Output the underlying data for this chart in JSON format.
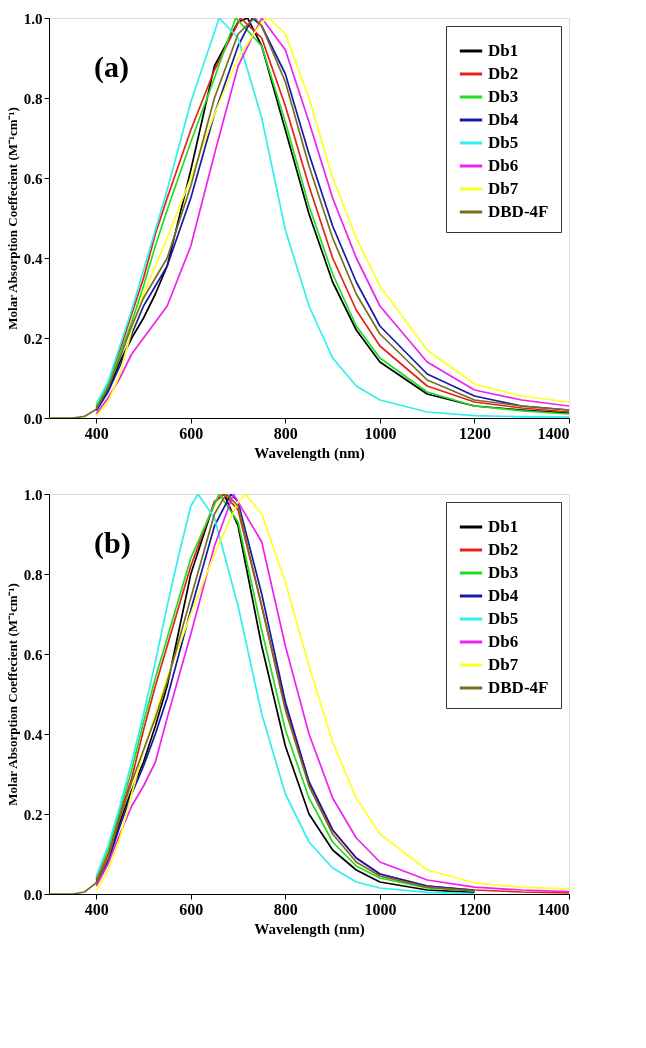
{
  "chart_data": [
    {
      "type": "line",
      "xlabel": "Wavelength (nm)",
      "ylabel": "Molar Absorption Coeffecient (M⁻¹cm⁻¹)",
      "annotations": [
        "(a)"
      ],
      "xlim": [
        300,
        1400
      ],
      "xticks": [
        400,
        600,
        800,
        1000,
        1200,
        1400
      ],
      "ylim": [
        0,
        1.0
      ],
      "yticks": [
        {
          "value": 0,
          "label": "0.0"
        },
        {
          "value": 0.2,
          "label": "0.2"
        },
        {
          "value": 0.4,
          "label": "0.4"
        },
        {
          "value": 0.6,
          "label": "0.6"
        },
        {
          "value": 0.8,
          "label": "0.8"
        },
        {
          "value": 1.0,
          "label": "1.0"
        }
      ],
      "grid": false,
      "legend": "top right",
      "marker": "none",
      "line_style": "solid",
      "series": [
        {
          "name": "Db1",
          "color": "#000000",
          "x": [
            400,
            425,
            450,
            475,
            500,
            525,
            550,
            600,
            650,
            700,
            720,
            750,
            800,
            850,
            900,
            950,
            1000,
            1100,
            1200,
            1300,
            1400
          ],
          "values": [
            0.02,
            0.07,
            0.14,
            0.2,
            0.25,
            0.31,
            0.38,
            0.62,
            0.88,
            0.99,
            1.0,
            0.93,
            0.72,
            0.51,
            0.34,
            0.22,
            0.14,
            0.06,
            0.03,
            0.02,
            0.012
          ]
        },
        {
          "name": "Db2",
          "color": "#e8201c",
          "x": [
            400,
            425,
            450,
            475,
            500,
            525,
            550,
            600,
            650,
            705,
            750,
            800,
            850,
            900,
            950,
            1000,
            1100,
            1200,
            1300,
            1400
          ],
          "values": [
            0.025,
            0.085,
            0.17,
            0.26,
            0.35,
            0.46,
            0.55,
            0.72,
            0.87,
            1.0,
            0.95,
            0.78,
            0.58,
            0.4,
            0.27,
            0.18,
            0.08,
            0.04,
            0.025,
            0.015
          ]
        },
        {
          "name": "Db3",
          "color": "#22dd22",
          "x": [
            400,
            425,
            450,
            475,
            500,
            525,
            550,
            600,
            650,
            695,
            750,
            800,
            850,
            900,
            950,
            1000,
            1100,
            1200,
            1300,
            1400
          ],
          "values": [
            0.03,
            0.08,
            0.16,
            0.24,
            0.33,
            0.43,
            0.52,
            0.69,
            0.85,
            1.0,
            0.93,
            0.74,
            0.53,
            0.36,
            0.23,
            0.15,
            0.065,
            0.03,
            0.018,
            0.01
          ]
        },
        {
          "name": "Db4",
          "color": "#1a1aa8",
          "x": [
            400,
            425,
            450,
            475,
            500,
            525,
            550,
            600,
            650,
            700,
            730,
            750,
            800,
            850,
            900,
            950,
            1000,
            1100,
            1200,
            1300,
            1400
          ],
          "values": [
            0.018,
            0.065,
            0.13,
            0.21,
            0.28,
            0.33,
            0.38,
            0.55,
            0.76,
            0.93,
            1.0,
            0.98,
            0.86,
            0.66,
            0.48,
            0.34,
            0.23,
            0.11,
            0.055,
            0.03,
            0.02
          ]
        },
        {
          "name": "Db5",
          "color": "#33eeee",
          "x": [
            400,
            425,
            450,
            475,
            500,
            525,
            550,
            600,
            660,
            700,
            750,
            800,
            850,
            900,
            950,
            1000,
            1100,
            1200,
            1300,
            1400
          ],
          "values": [
            0.035,
            0.09,
            0.18,
            0.27,
            0.37,
            0.47,
            0.57,
            0.79,
            1.0,
            0.95,
            0.75,
            0.47,
            0.28,
            0.15,
            0.08,
            0.045,
            0.015,
            0.006,
            0.003,
            0.002
          ]
        },
        {
          "name": "Db6",
          "color": "#ee22ee",
          "x": [
            400,
            425,
            450,
            475,
            500,
            525,
            550,
            600,
            650,
            700,
            750,
            800,
            850,
            900,
            950,
            1000,
            1100,
            1200,
            1300,
            1400
          ],
          "values": [
            0.01,
            0.05,
            0.1,
            0.16,
            0.2,
            0.24,
            0.28,
            0.43,
            0.66,
            0.88,
            1.0,
            0.92,
            0.74,
            0.55,
            0.4,
            0.28,
            0.14,
            0.07,
            0.045,
            0.03
          ]
        },
        {
          "name": "Db7",
          "color": "#ffff22",
          "x": [
            400,
            425,
            450,
            475,
            500,
            525,
            550,
            600,
            650,
            700,
            750,
            765,
            800,
            850,
            900,
            950,
            1000,
            1100,
            1200,
            1300,
            1400
          ],
          "values": [
            0.005,
            0.04,
            0.11,
            0.22,
            0.31,
            0.38,
            0.45,
            0.6,
            0.76,
            0.9,
            0.99,
            1.0,
            0.96,
            0.8,
            0.6,
            0.45,
            0.33,
            0.17,
            0.085,
            0.055,
            0.04
          ]
        },
        {
          "name": "DBD-4F",
          "color": "#7a6e1e",
          "x": [
            300,
            350,
            375,
            400,
            425,
            450,
            475,
            500,
            525,
            550,
            600,
            650,
            700,
            735,
            750,
            800,
            850,
            900,
            950,
            1000,
            1100,
            1200,
            1300,
            1400
          ],
          "values": [
            0,
            0,
            0.004,
            0.022,
            0.075,
            0.15,
            0.23,
            0.3,
            0.35,
            0.4,
            0.58,
            0.8,
            0.96,
            1.0,
            0.98,
            0.84,
            0.63,
            0.45,
            0.31,
            0.21,
            0.095,
            0.045,
            0.03,
            0.02
          ]
        }
      ]
    },
    {
      "type": "line",
      "xlabel": "Wavelength (nm)",
      "ylabel": "Molar Absorption Coeffecient (M⁻¹cm⁻¹)",
      "annotations": [
        "(b)"
      ],
      "xlim": [
        300,
        1400
      ],
      "xticks": [
        400,
        600,
        800,
        1000,
        1200,
        1400
      ],
      "ylim": [
        0,
        1.0
      ],
      "yticks": [
        {
          "value": 0,
          "label": "0.0"
        },
        {
          "value": 0.2,
          "label": "0.2"
        },
        {
          "value": 0.4,
          "label": "0.4"
        },
        {
          "value": 0.6,
          "label": "0.6"
        },
        {
          "value": 0.8,
          "label": "0.8"
        },
        {
          "value": 1.0,
          "label": "1.0"
        }
      ],
      "grid": false,
      "legend": "top right",
      "marker": "none",
      "line_style": "solid",
      "series": [
        {
          "name": "Db1",
          "color": "#000000",
          "x": [
            400,
            425,
            450,
            475,
            500,
            525,
            550,
            600,
            650,
            670,
            700,
            750,
            800,
            850,
            900,
            950,
            1000,
            1100,
            1200
          ],
          "values": [
            0.03,
            0.085,
            0.18,
            0.26,
            0.33,
            0.42,
            0.52,
            0.8,
            0.98,
            1.0,
            0.92,
            0.62,
            0.37,
            0.2,
            0.11,
            0.06,
            0.03,
            0.01,
            0.004
          ]
        },
        {
          "name": "Db2",
          "color": "#e8201c",
          "x": [
            400,
            425,
            450,
            475,
            500,
            525,
            550,
            600,
            650,
            670,
            700,
            750,
            800,
            850,
            900,
            950,
            1000,
            1100,
            1200,
            1300,
            1400
          ],
          "values": [
            0.035,
            0.1,
            0.2,
            0.29,
            0.41,
            0.52,
            0.62,
            0.82,
            0.98,
            1.0,
            0.96,
            0.72,
            0.47,
            0.28,
            0.16,
            0.09,
            0.05,
            0.02,
            0.01,
            0.005,
            0.003
          ]
        },
        {
          "name": "Db3",
          "color": "#22dd22",
          "x": [
            400,
            425,
            450,
            475,
            500,
            525,
            550,
            600,
            660,
            700,
            750,
            800,
            850,
            900,
            950,
            1000,
            1100,
            1200
          ],
          "values": [
            0.04,
            0.11,
            0.21,
            0.31,
            0.43,
            0.54,
            0.64,
            0.84,
            1.0,
            0.93,
            0.66,
            0.41,
            0.24,
            0.13,
            0.07,
            0.04,
            0.015,
            0.008
          ]
        },
        {
          "name": "Db4",
          "color": "#1a1aa8",
          "x": [
            400,
            425,
            450,
            475,
            500,
            525,
            550,
            600,
            650,
            685,
            700,
            750,
            800,
            850,
            900,
            950,
            1000,
            1100,
            1200
          ],
          "values": [
            0.025,
            0.08,
            0.17,
            0.25,
            0.32,
            0.4,
            0.49,
            0.71,
            0.92,
            1.0,
            0.98,
            0.75,
            0.48,
            0.28,
            0.16,
            0.09,
            0.05,
            0.02,
            0.009
          ]
        },
        {
          "name": "Db5",
          "color": "#33eeee",
          "x": [
            400,
            425,
            450,
            475,
            500,
            525,
            550,
            575,
            600,
            615,
            650,
            700,
            750,
            800,
            850,
            900,
            950,
            1000,
            1100,
            1200
          ],
          "values": [
            0.045,
            0.12,
            0.22,
            0.33,
            0.45,
            0.58,
            0.72,
            0.85,
            0.97,
            1.0,
            0.94,
            0.72,
            0.45,
            0.25,
            0.13,
            0.065,
            0.03,
            0.015,
            0.004,
            0.001
          ]
        },
        {
          "name": "Db6",
          "color": "#ee22ee",
          "x": [
            400,
            425,
            450,
            475,
            500,
            525,
            550,
            600,
            650,
            690,
            750,
            800,
            850,
            900,
            950,
            1000,
            1100,
            1200,
            1300,
            1400
          ],
          "values": [
            0.02,
            0.075,
            0.15,
            0.22,
            0.27,
            0.33,
            0.44,
            0.65,
            0.87,
            1.0,
            0.88,
            0.62,
            0.4,
            0.24,
            0.14,
            0.08,
            0.035,
            0.017,
            0.01,
            0.006
          ]
        },
        {
          "name": "Db7",
          "color": "#ffff22",
          "x": [
            400,
            425,
            450,
            475,
            500,
            525,
            550,
            600,
            650,
            700,
            715,
            750,
            800,
            850,
            900,
            950,
            1000,
            1100,
            1200,
            1300,
            1400
          ],
          "values": [
            0.01,
            0.06,
            0.14,
            0.25,
            0.36,
            0.45,
            0.54,
            0.7,
            0.85,
            0.98,
            1.0,
            0.95,
            0.78,
            0.57,
            0.38,
            0.24,
            0.15,
            0.06,
            0.028,
            0.017,
            0.012
          ]
        },
        {
          "name": "DBD-4F",
          "color": "#7a6e1e",
          "x": [
            300,
            350,
            375,
            400,
            425,
            450,
            475,
            500,
            525,
            550,
            600,
            650,
            675,
            700,
            750,
            800,
            850,
            900,
            950,
            1000,
            1100,
            1200
          ],
          "values": [
            0,
            0,
            0.005,
            0.028,
            0.09,
            0.19,
            0.28,
            0.36,
            0.44,
            0.53,
            0.74,
            0.95,
            1.0,
            0.97,
            0.72,
            0.46,
            0.27,
            0.15,
            0.08,
            0.045,
            0.017,
            0.008
          ]
        }
      ]
    }
  ]
}
